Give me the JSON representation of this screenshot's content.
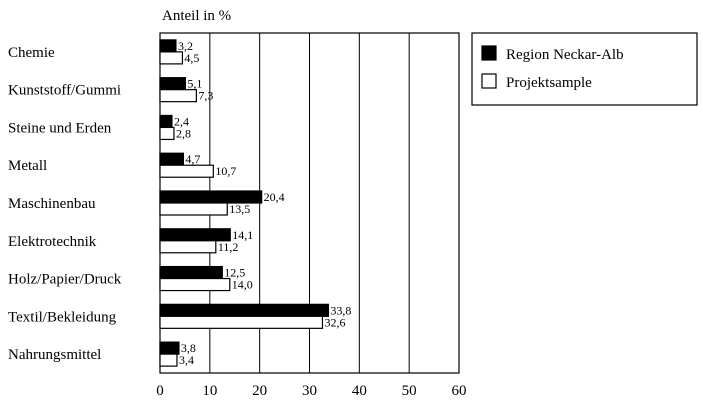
{
  "chart_data": {
    "type": "bar",
    "orientation": "horizontal",
    "title": "",
    "xlabel": "",
    "ylabel": "Anteil in %",
    "xlim": [
      0,
      60
    ],
    "xticks": [
      0,
      10,
      20,
      30,
      40,
      50,
      60
    ],
    "grid": true,
    "legend_position": "top-right",
    "categories": [
      "Chemie",
      "Kunststoff/Gummi",
      "Steine und Erden",
      "Metall",
      "Maschinenbau",
      "Elektrotechnik",
      "Holz/Papier/Druck",
      "Textil/Bekleidung",
      "Nahrungsmittel"
    ],
    "series": [
      {
        "name": "Region Neckar-Alb",
        "color": "#000000",
        "values": [
          3.2,
          5.1,
          2.4,
          4.7,
          20.4,
          14.1,
          12.5,
          33.8,
          3.8
        ],
        "labels": [
          "3,2",
          "5,1",
          "2,4",
          "4,7",
          "20,4",
          "14,1",
          "12,5",
          "33,8",
          "3,8"
        ]
      },
      {
        "name": "Projektsample",
        "color": "#ffffff",
        "values": [
          4.5,
          7.3,
          2.8,
          10.7,
          13.5,
          11.2,
          14.0,
          32.6,
          3.4
        ],
        "labels": [
          "4,5",
          "7,3",
          "2,8",
          "10,7",
          "13,5",
          "11,2",
          "14,0",
          "32,6",
          "3,4"
        ]
      }
    ]
  }
}
